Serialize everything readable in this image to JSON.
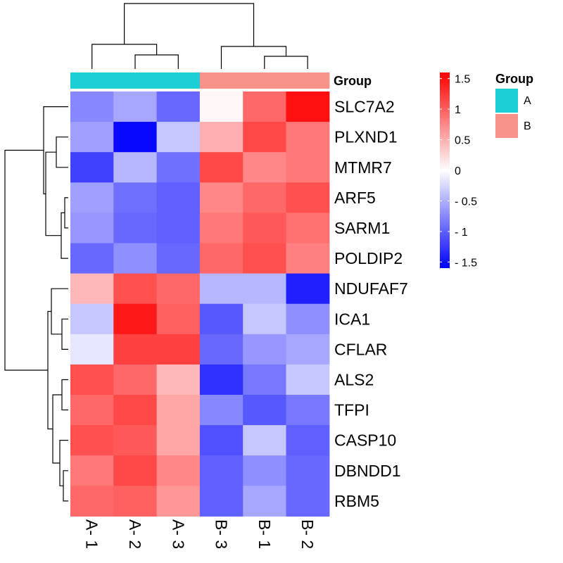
{
  "chart_data": {
    "type": "heatmap",
    "rows": [
      "SLC7A2",
      "PLXND1",
      "MTMR7",
      "ARF5",
      "SARM1",
      "POLDIP2",
      "NDUFAF7",
      "ICA1",
      "CFLAR",
      "ALS2",
      "TFPI",
      "CASP10",
      "DBNDD1",
      "RBM5"
    ],
    "columns": [
      "A- 1",
      "A- 2",
      "A- 3",
      "B- 3",
      "B- 1",
      "B- 2"
    ],
    "values": [
      [
        -0.75,
        -0.55,
        -0.95,
        0.05,
        0.95,
        1.5
      ],
      [
        -0.6,
        -1.55,
        -0.35,
        0.5,
        1.15,
        0.85
      ],
      [
        -1.2,
        -0.45,
        -0.9,
        1.15,
        0.75,
        0.85
      ],
      [
        -0.6,
        -0.9,
        -1.0,
        0.75,
        0.95,
        1.1
      ],
      [
        -0.65,
        -0.95,
        -1.0,
        0.85,
        1.05,
        0.9
      ],
      [
        -0.95,
        -0.7,
        -0.95,
        0.95,
        1.1,
        0.8
      ],
      [
        0.45,
        1.1,
        0.95,
        -0.45,
        -0.45,
        -1.4
      ],
      [
        -0.35,
        1.45,
        1.0,
        -1.05,
        -0.35,
        -0.7
      ],
      [
        -0.15,
        1.2,
        1.2,
        -0.95,
        -0.65,
        -0.55
      ],
      [
        1.1,
        0.95,
        0.45,
        -1.3,
        -0.85,
        -0.35
      ],
      [
        0.95,
        1.15,
        0.55,
        -0.75,
        -1.05,
        -0.85
      ],
      [
        1.1,
        1.05,
        0.55,
        -1.1,
        -0.35,
        -1.0
      ],
      [
        0.85,
        1.15,
        0.75,
        -1.0,
        -0.7,
        -0.95
      ],
      [
        0.95,
        1.0,
        0.65,
        -1.0,
        -0.55,
        -0.95
      ]
    ],
    "group_annotation": {
      "title": "Group",
      "assignments": [
        "A",
        "A",
        "A",
        "B",
        "B",
        "B"
      ],
      "levels": [
        "A",
        "B"
      ],
      "colors": {
        "A": "#1ccfd6",
        "B": "#f8938b"
      }
    },
    "colorbar": {
      "ticks": [
        "1.5",
        "1",
        "0.5",
        "0",
        "- 0.5",
        "- 1",
        "- 1.5"
      ],
      "tick_values": [
        1.5,
        1,
        0.5,
        0,
        -0.5,
        -1,
        -1.5
      ],
      "range": [
        -1.6,
        1.6
      ],
      "colors": {
        "low": "#0000ff",
        "mid": "#ffffff",
        "high": "#ff0000"
      }
    },
    "legend": {
      "title": "Group",
      "items": [
        "A",
        "B"
      ]
    },
    "column_dendrogram": true,
    "row_dendrogram": true
  }
}
